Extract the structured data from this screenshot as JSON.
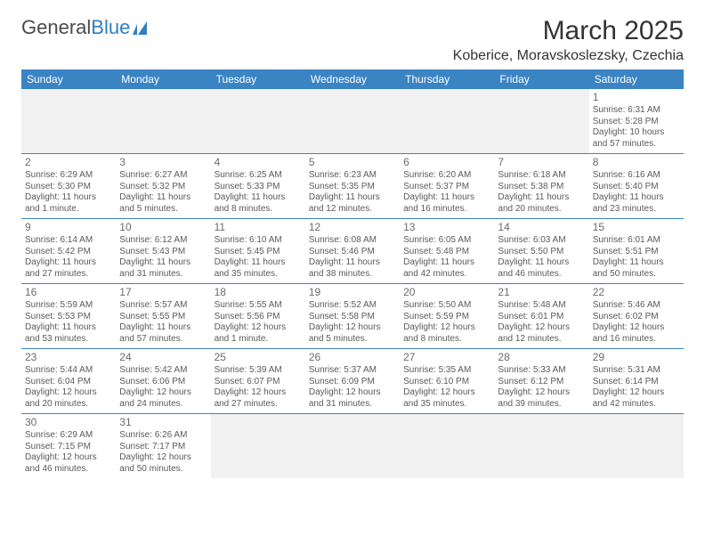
{
  "brand": {
    "part1": "General",
    "part2": "Blue"
  },
  "title": "March 2025",
  "location": "Koberice, Moravskoslezsky, Czechia",
  "colors": {
    "header_bg": "#3b84c4",
    "header_text": "#ffffff",
    "cell_border": "#3b84c4",
    "text": "#5a5a5a",
    "empty_bg": "#f1f1f1"
  },
  "weekdays": [
    "Sunday",
    "Monday",
    "Tuesday",
    "Wednesday",
    "Thursday",
    "Friday",
    "Saturday"
  ],
  "weeks": [
    [
      null,
      null,
      null,
      null,
      null,
      null,
      {
        "n": "1",
        "sr": "Sunrise: 6:31 AM",
        "ss": "Sunset: 5:28 PM",
        "dl": "Daylight: 10 hours and 57 minutes."
      }
    ],
    [
      {
        "n": "2",
        "sr": "Sunrise: 6:29 AM",
        "ss": "Sunset: 5:30 PM",
        "dl": "Daylight: 11 hours and 1 minute."
      },
      {
        "n": "3",
        "sr": "Sunrise: 6:27 AM",
        "ss": "Sunset: 5:32 PM",
        "dl": "Daylight: 11 hours and 5 minutes."
      },
      {
        "n": "4",
        "sr": "Sunrise: 6:25 AM",
        "ss": "Sunset: 5:33 PM",
        "dl": "Daylight: 11 hours and 8 minutes."
      },
      {
        "n": "5",
        "sr": "Sunrise: 6:23 AM",
        "ss": "Sunset: 5:35 PM",
        "dl": "Daylight: 11 hours and 12 minutes."
      },
      {
        "n": "6",
        "sr": "Sunrise: 6:20 AM",
        "ss": "Sunset: 5:37 PM",
        "dl": "Daylight: 11 hours and 16 minutes."
      },
      {
        "n": "7",
        "sr": "Sunrise: 6:18 AM",
        "ss": "Sunset: 5:38 PM",
        "dl": "Daylight: 11 hours and 20 minutes."
      },
      {
        "n": "8",
        "sr": "Sunrise: 6:16 AM",
        "ss": "Sunset: 5:40 PM",
        "dl": "Daylight: 11 hours and 23 minutes."
      }
    ],
    [
      {
        "n": "9",
        "sr": "Sunrise: 6:14 AM",
        "ss": "Sunset: 5:42 PM",
        "dl": "Daylight: 11 hours and 27 minutes."
      },
      {
        "n": "10",
        "sr": "Sunrise: 6:12 AM",
        "ss": "Sunset: 5:43 PM",
        "dl": "Daylight: 11 hours and 31 minutes."
      },
      {
        "n": "11",
        "sr": "Sunrise: 6:10 AM",
        "ss": "Sunset: 5:45 PM",
        "dl": "Daylight: 11 hours and 35 minutes."
      },
      {
        "n": "12",
        "sr": "Sunrise: 6:08 AM",
        "ss": "Sunset: 5:46 PM",
        "dl": "Daylight: 11 hours and 38 minutes."
      },
      {
        "n": "13",
        "sr": "Sunrise: 6:05 AM",
        "ss": "Sunset: 5:48 PM",
        "dl": "Daylight: 11 hours and 42 minutes."
      },
      {
        "n": "14",
        "sr": "Sunrise: 6:03 AM",
        "ss": "Sunset: 5:50 PM",
        "dl": "Daylight: 11 hours and 46 minutes."
      },
      {
        "n": "15",
        "sr": "Sunrise: 6:01 AM",
        "ss": "Sunset: 5:51 PM",
        "dl": "Daylight: 11 hours and 50 minutes."
      }
    ],
    [
      {
        "n": "16",
        "sr": "Sunrise: 5:59 AM",
        "ss": "Sunset: 5:53 PM",
        "dl": "Daylight: 11 hours and 53 minutes."
      },
      {
        "n": "17",
        "sr": "Sunrise: 5:57 AM",
        "ss": "Sunset: 5:55 PM",
        "dl": "Daylight: 11 hours and 57 minutes."
      },
      {
        "n": "18",
        "sr": "Sunrise: 5:55 AM",
        "ss": "Sunset: 5:56 PM",
        "dl": "Daylight: 12 hours and 1 minute."
      },
      {
        "n": "19",
        "sr": "Sunrise: 5:52 AM",
        "ss": "Sunset: 5:58 PM",
        "dl": "Daylight: 12 hours and 5 minutes."
      },
      {
        "n": "20",
        "sr": "Sunrise: 5:50 AM",
        "ss": "Sunset: 5:59 PM",
        "dl": "Daylight: 12 hours and 8 minutes."
      },
      {
        "n": "21",
        "sr": "Sunrise: 5:48 AM",
        "ss": "Sunset: 6:01 PM",
        "dl": "Daylight: 12 hours and 12 minutes."
      },
      {
        "n": "22",
        "sr": "Sunrise: 5:46 AM",
        "ss": "Sunset: 6:02 PM",
        "dl": "Daylight: 12 hours and 16 minutes."
      }
    ],
    [
      {
        "n": "23",
        "sr": "Sunrise: 5:44 AM",
        "ss": "Sunset: 6:04 PM",
        "dl": "Daylight: 12 hours and 20 minutes."
      },
      {
        "n": "24",
        "sr": "Sunrise: 5:42 AM",
        "ss": "Sunset: 6:06 PM",
        "dl": "Daylight: 12 hours and 24 minutes."
      },
      {
        "n": "25",
        "sr": "Sunrise: 5:39 AM",
        "ss": "Sunset: 6:07 PM",
        "dl": "Daylight: 12 hours and 27 minutes."
      },
      {
        "n": "26",
        "sr": "Sunrise: 5:37 AM",
        "ss": "Sunset: 6:09 PM",
        "dl": "Daylight: 12 hours and 31 minutes."
      },
      {
        "n": "27",
        "sr": "Sunrise: 5:35 AM",
        "ss": "Sunset: 6:10 PM",
        "dl": "Daylight: 12 hours and 35 minutes."
      },
      {
        "n": "28",
        "sr": "Sunrise: 5:33 AM",
        "ss": "Sunset: 6:12 PM",
        "dl": "Daylight: 12 hours and 39 minutes."
      },
      {
        "n": "29",
        "sr": "Sunrise: 5:31 AM",
        "ss": "Sunset: 6:14 PM",
        "dl": "Daylight: 12 hours and 42 minutes."
      }
    ],
    [
      {
        "n": "30",
        "sr": "Sunrise: 6:29 AM",
        "ss": "Sunset: 7:15 PM",
        "dl": "Daylight: 12 hours and 46 minutes."
      },
      {
        "n": "31",
        "sr": "Sunrise: 6:26 AM",
        "ss": "Sunset: 7:17 PM",
        "dl": "Daylight: 12 hours and 50 minutes."
      },
      null,
      null,
      null,
      null,
      null
    ]
  ]
}
